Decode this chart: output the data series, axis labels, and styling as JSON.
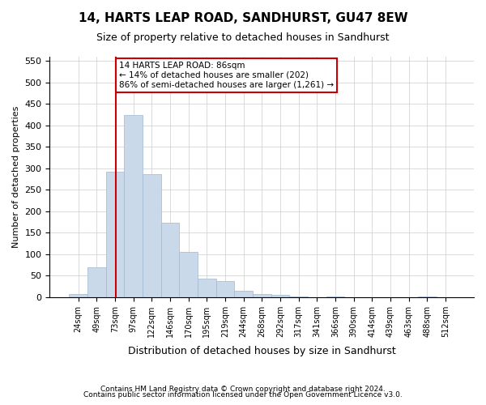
{
  "title": "14, HARTS LEAP ROAD, SANDHURST, GU47 8EW",
  "subtitle": "Size of property relative to detached houses in Sandhurst",
  "xlabel": "Distribution of detached houses by size in Sandhurst",
  "ylabel": "Number of detached properties",
  "footnote1": "Contains HM Land Registry data © Crown copyright and database right 2024.",
  "footnote2": "Contains public sector information licensed under the Open Government Licence v3.0.",
  "bin_labels": [
    "24sqm",
    "49sqm",
    "73sqm",
    "97sqm",
    "122sqm",
    "146sqm",
    "170sqm",
    "195sqm",
    "219sqm",
    "244sqm",
    "268sqm",
    "292sqm",
    "317sqm",
    "341sqm",
    "366sqm",
    "390sqm",
    "414sqm",
    "439sqm",
    "463sqm",
    "488sqm",
    "512sqm"
  ],
  "bar_values": [
    8,
    70,
    292,
    425,
    287,
    173,
    105,
    43,
    38,
    15,
    8,
    5,
    2,
    0,
    1,
    0,
    0,
    0,
    0,
    2,
    0
  ],
  "bar_color": "#c9d9ea",
  "bar_edge_color": "#a0b8d0",
  "property_line_x": 2.04,
  "vline_color": "#cc0000",
  "annotation_text": "14 HARTS LEAP ROAD: 86sqm\n← 14% of detached houses are smaller (202)\n86% of semi-detached houses are larger (1,261) →",
  "ylim": [
    0,
    560
  ],
  "yticks": [
    0,
    50,
    100,
    150,
    200,
    250,
    300,
    350,
    400,
    450,
    500,
    550
  ],
  "background_color": "#ffffff",
  "grid_color": "#cccccc"
}
